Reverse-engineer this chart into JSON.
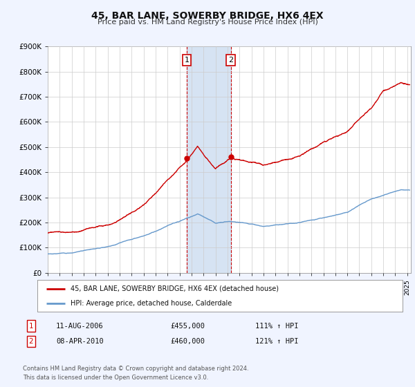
{
  "title": "45, BAR LANE, SOWERBY BRIDGE, HX6 4EX",
  "subtitle": "Price paid vs. HM Land Registry's House Price Index (HPI)",
  "ylim": [
    0,
    900000
  ],
  "yticks": [
    0,
    100000,
    200000,
    300000,
    400000,
    500000,
    600000,
    700000,
    800000,
    900000
  ],
  "ytick_labels": [
    "£0",
    "£100K",
    "£200K",
    "£300K",
    "£400K",
    "£500K",
    "£600K",
    "£700K",
    "£800K",
    "£900K"
  ],
  "xlim_start": 1995.0,
  "xlim_end": 2025.3,
  "sale1_x": 2006.61,
  "sale1_y": 455000,
  "sale1_label": "1",
  "sale1_date": "11-AUG-2006",
  "sale1_price": "£455,000",
  "sale1_hpi": "111% ↑ HPI",
  "sale2_x": 2010.27,
  "sale2_y": 460000,
  "sale2_label": "2",
  "sale2_date": "08-APR-2010",
  "sale2_price": "£460,000",
  "sale2_hpi": "121% ↑ HPI",
  "hpi_line_color": "#6699cc",
  "property_line_color": "#cc0000",
  "sale_marker_color": "#cc0000",
  "background_color": "#f0f4ff",
  "plot_bg_color": "#ffffff",
  "grid_color": "#cccccc",
  "legend_label_property": "45, BAR LANE, SOWERBY BRIDGE, HX6 4EX (detached house)",
  "legend_label_hpi": "HPI: Average price, detached house, Calderdale",
  "footnote1": "Contains HM Land Registry data © Crown copyright and database right 2024.",
  "footnote2": "This data is licensed under the Open Government Licence v3.0.",
  "shade_x1": 2006.61,
  "shade_x2": 2010.27,
  "hpi_key_x": [
    1995,
    1997,
    2000,
    2003,
    2007.5,
    2009,
    2010.5,
    2013,
    2016,
    2020,
    2022,
    2024.5
  ],
  "hpi_key_y": [
    75000,
    80000,
    110000,
    155000,
    240000,
    205000,
    210000,
    195000,
    215000,
    250000,
    300000,
    340000
  ],
  "prop_key_x": [
    1995,
    1997,
    2000,
    2003,
    2006,
    2006.61,
    2007.5,
    2009,
    2010.27,
    2011,
    2013,
    2016,
    2018,
    2020,
    2022,
    2023,
    2024.5
  ],
  "prop_key_y": [
    158000,
    165000,
    195000,
    270000,
    430000,
    455000,
    505000,
    415000,
    460000,
    455000,
    435000,
    470000,
    520000,
    560000,
    650000,
    720000,
    750000
  ]
}
